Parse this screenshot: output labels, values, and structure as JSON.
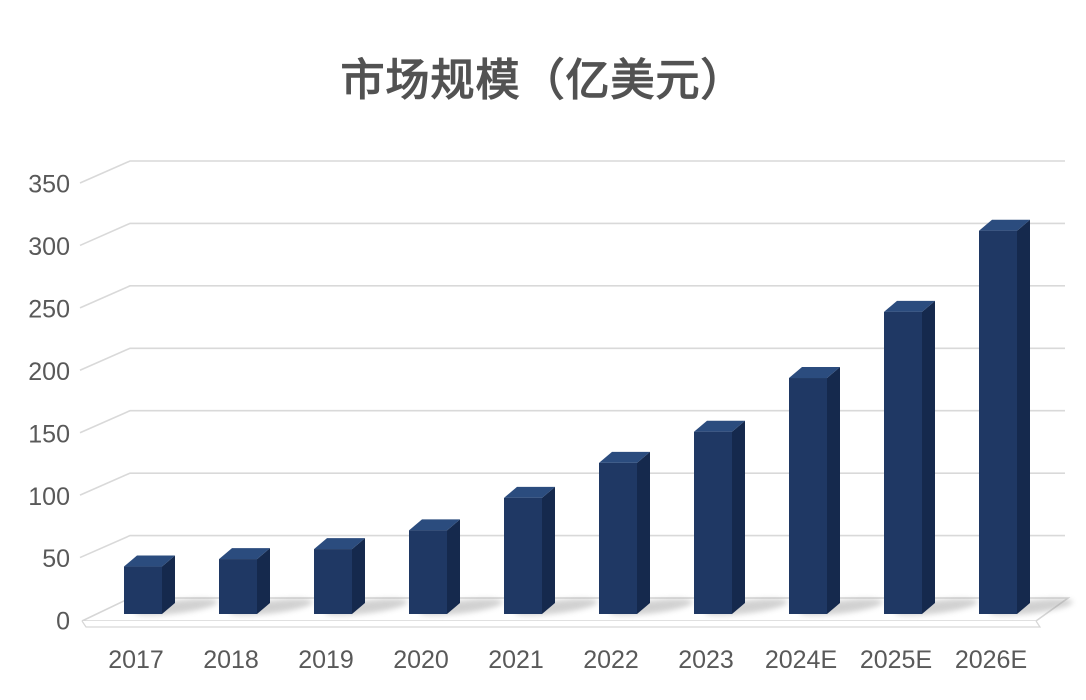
{
  "chart_data": {
    "type": "bar",
    "variant": "3d-column",
    "title": "市场规模（亿美元）",
    "categories": [
      "2017",
      "2018",
      "2019",
      "2020",
      "2021",
      "2022",
      "2023",
      "2024E",
      "2025E",
      "2026E"
    ],
    "values": [
      38,
      44,
      52,
      67,
      93,
      121,
      146,
      189,
      242,
      307
    ],
    "xlabel": "",
    "ylabel": "",
    "ylim": [
      0,
      350
    ],
    "yticks": [
      0,
      50,
      100,
      150,
      200,
      250,
      300,
      350
    ],
    "grid": true,
    "legend": "none",
    "colors": {
      "background": "#ffffff",
      "bar_front": "#1f3864",
      "bar_top": "#2b4c7e",
      "bar_side": "#15294d",
      "gridline": "#d9d9d9",
      "floor_outline": "#d6d6d6",
      "axis_label": "#595959",
      "title": "#525252",
      "shadow": "#9a9a9a"
    }
  }
}
